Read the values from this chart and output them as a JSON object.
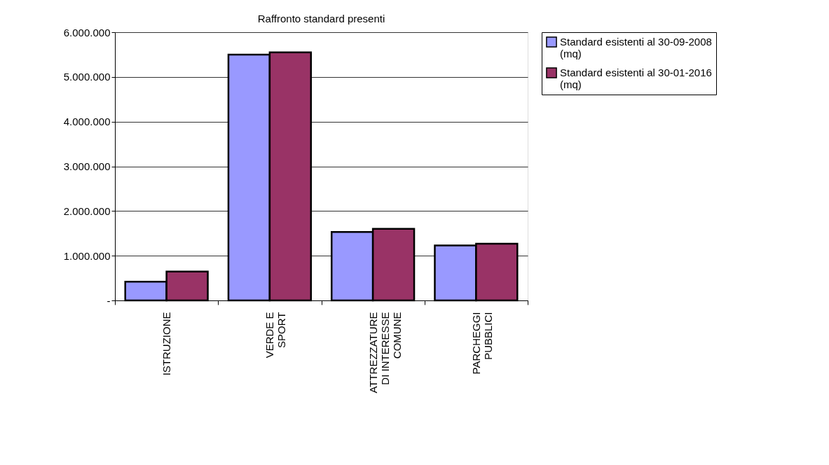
{
  "chart_data": {
    "type": "bar",
    "title": "Raffronto standard presenti",
    "categories": [
      "ISTRUZIONE",
      "VERDE E SPORT",
      "ATTREZZATURE DI INTERESSE COMUNE",
      "PARCHEGGI PUBBLICI"
    ],
    "series": [
      {
        "name": "Standard esistenti al 30-09-2008 (mq)",
        "color": "#9999ff",
        "values": [
          420000,
          5500000,
          1530000,
          1230000
        ]
      },
      {
        "name": "Standard esistenti al 30-01-2016 (mq)",
        "color": "#993366",
        "values": [
          645000,
          5550000,
          1600000,
          1270000
        ]
      }
    ],
    "ylim": [
      0,
      6000000
    ],
    "yticks": [
      {
        "value": 0,
        "label": "-"
      },
      {
        "value": 1000000,
        "label": "1.000.000"
      },
      {
        "value": 2000000,
        "label": "2.000.000"
      },
      {
        "value": 3000000,
        "label": "3.000.000"
      },
      {
        "value": 4000000,
        "label": "4.000.000"
      },
      {
        "value": 5000000,
        "label": "5.000.000"
      },
      {
        "value": 6000000,
        "label": "6.000.000"
      }
    ],
    "grid": "y",
    "legend": "right"
  }
}
